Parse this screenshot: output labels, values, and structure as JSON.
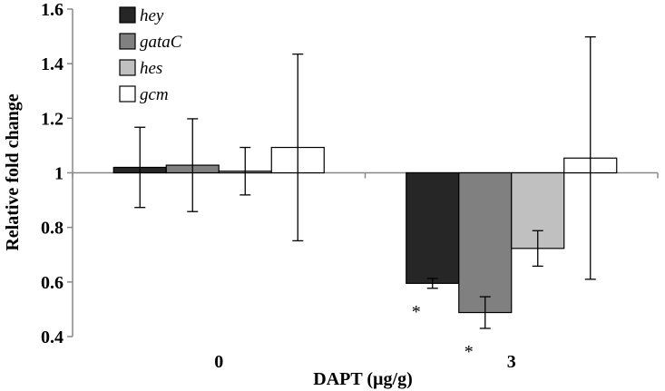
{
  "chart_data": {
    "type": "bar",
    "xlabel": "DAPT (µg/g)",
    "ylabel": "Relative fold change",
    "ylim": [
      0.4,
      1.6
    ],
    "yticks": [
      "0.4",
      "0.6",
      "0.8",
      "1",
      "1.2",
      "1.4",
      "1.6"
    ],
    "baseline": 1,
    "categories": [
      "0",
      "3"
    ],
    "legend_position": "top-left",
    "series": [
      {
        "name": "hey",
        "color": "#262626",
        "values": [
          1.02,
          0.595
        ],
        "error": [
          0.147,
          0.018
        ],
        "significance": [
          "",
          "*"
        ]
      },
      {
        "name": "gataC",
        "color": "#808080",
        "values": [
          1.028,
          0.488
        ],
        "error": [
          0.17,
          0.058
        ],
        "significance": [
          "",
          "*"
        ]
      },
      {
        "name": "hes",
        "color": "#c0c0c0",
        "values": [
          1.006,
          0.723
        ],
        "error": [
          0.087,
          0.065
        ],
        "significance": [
          "",
          ""
        ]
      },
      {
        "name": "gcm",
        "color": "#ffffff",
        "values": [
          1.093,
          1.054
        ],
        "error": [
          0.342,
          0.444
        ],
        "significance": [
          "",
          ""
        ]
      }
    ]
  }
}
